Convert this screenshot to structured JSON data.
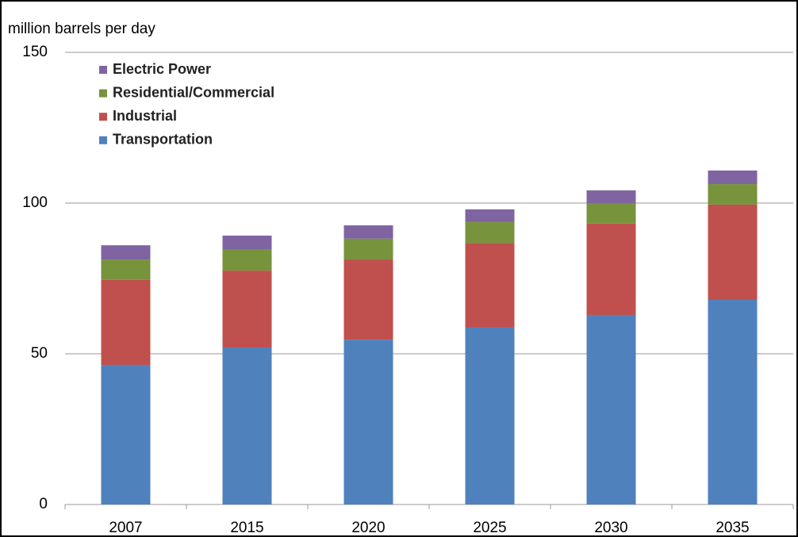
{
  "chart_data": {
    "type": "bar",
    "stacked": true,
    "y_label": "million barrels per day",
    "categories": [
      "2007",
      "2015",
      "2020",
      "2025",
      "2030",
      "2035"
    ],
    "series": [
      {
        "name": "Transportation",
        "color": "#4f81bd",
        "values": [
          46.3,
          52.1,
          54.7,
          58.7,
          62.9,
          67.9
        ]
      },
      {
        "name": "Industrial",
        "color": "#c0504d",
        "values": [
          28.2,
          25.5,
          26.6,
          28.1,
          30.3,
          31.6
        ]
      },
      {
        "name": "Residential/Commercial",
        "color": "#77933c",
        "values": [
          6.8,
          6.9,
          6.9,
          6.9,
          6.8,
          6.8
        ]
      },
      {
        "name": "Electric Power",
        "color": "#8064a2",
        "values": [
          4.7,
          4.7,
          4.4,
          4.2,
          4.2,
          4.5
        ]
      }
    ],
    "ylim": [
      0,
      150
    ],
    "yticks": [
      0,
      50,
      100,
      150
    ],
    "grid": true
  }
}
